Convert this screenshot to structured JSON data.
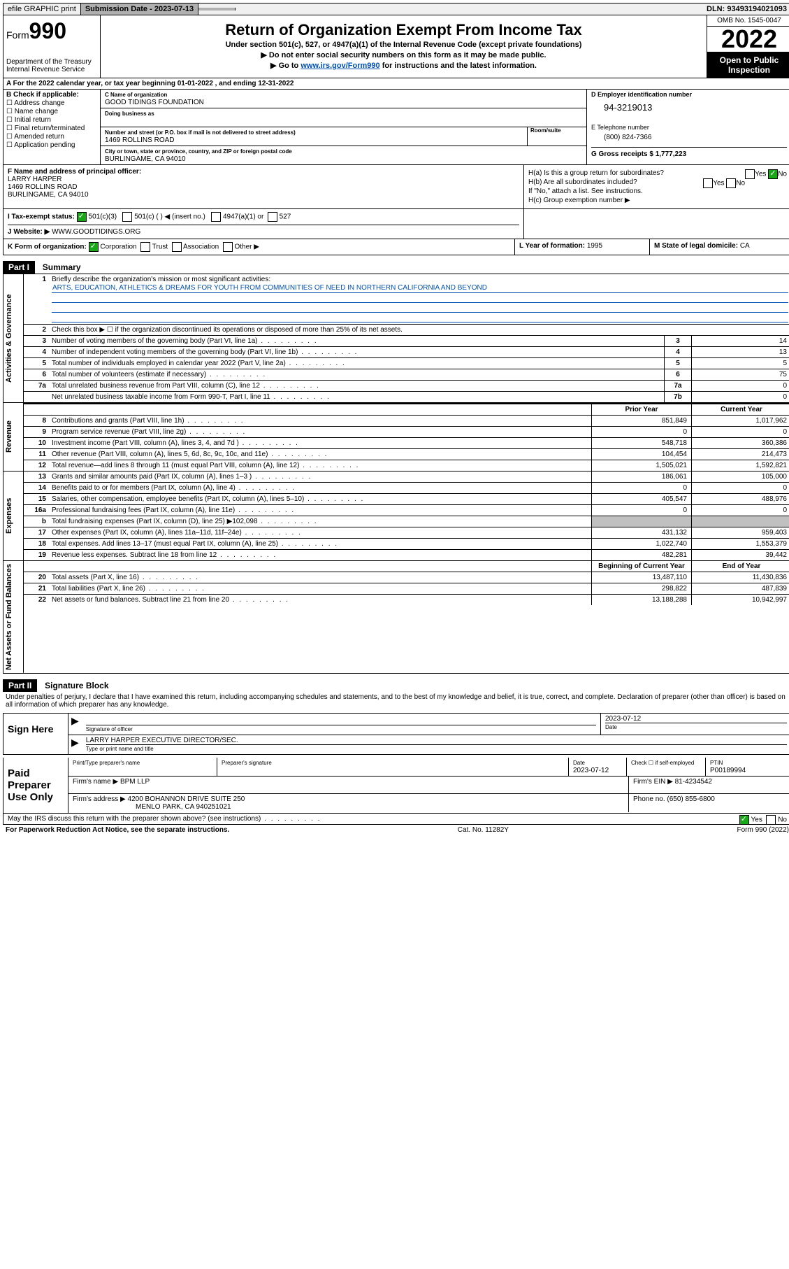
{
  "topbar": {
    "efile": "efile GRAPHIC print",
    "subdate_label": "Submission Date - 2023-07-13",
    "dln": "DLN: 93493194021093"
  },
  "header": {
    "form_prefix": "Form",
    "form_number": "990",
    "title": "Return of Organization Exempt From Income Tax",
    "subtitle1": "Under section 501(c), 527, or 4947(a)(1) of the Internal Revenue Code (except private foundations)",
    "subtitle2": "▶ Do not enter social security numbers on this form as it may be made public.",
    "subtitle3_pre": "▶ Go to ",
    "subtitle3_link": "www.irs.gov/Form990",
    "subtitle3_post": " for instructions and the latest information.",
    "dept": "Department of the Treasury\nInternal Revenue Service",
    "omb": "OMB No. 1545-0047",
    "year": "2022",
    "inspect": "Open to Public Inspection"
  },
  "row_a": "A For the 2022 calendar year, or tax year beginning 01-01-2022   , and ending 12-31-2022",
  "col_b": {
    "title": "B Check if applicable:",
    "opts": [
      "Address change",
      "Name change",
      "Initial return",
      "Final return/terminated",
      "Amended return",
      "Application pending"
    ]
  },
  "col_c": {
    "name_lbl": "C Name of organization",
    "name": "GOOD TIDINGS FOUNDATION",
    "dba_lbl": "Doing business as",
    "addr_lbl": "Number and street (or P.O. box if mail is not delivered to street address)",
    "room_lbl": "Room/suite",
    "addr": "1469 ROLLINS ROAD",
    "city_lbl": "City or town, state or province, country, and ZIP or foreign postal code",
    "city": "BURLINGAME, CA  94010"
  },
  "col_d": {
    "ein_lbl": "D Employer identification number",
    "ein": "94-3219013",
    "tel_lbl": "E Telephone number",
    "tel": "(800) 824-7366",
    "gross_lbl": "G Gross receipts $ ",
    "gross": "1,777,223"
  },
  "sec_f": {
    "lbl": "F Name and address of principal officer:",
    "name": "LARRY HARPER",
    "addr1": "1469 ROLLINS ROAD",
    "addr2": "BURLINGAME, CA  94010"
  },
  "sec_h": {
    "ha": "H(a)  Is this a group return for subordinates?",
    "hb": "H(b)  Are all subordinates included?",
    "hnote": "If \"No,\" attach a list. See instructions.",
    "hc": "H(c)  Group exemption number ▶",
    "yes": "Yes",
    "no": "No"
  },
  "row_i": {
    "lbl": "I   Tax-exempt status:",
    "o1": "501(c)(3)",
    "o2": "501(c) (  ) ◀ (insert no.)",
    "o3": "4947(a)(1) or",
    "o4": "527"
  },
  "row_j": {
    "lbl": "J  Website: ▶ ",
    "val": "WWW.GOODTIDINGS.ORG"
  },
  "row_k": {
    "lbl": "K Form of organization:",
    "o1": "Corporation",
    "o2": "Trust",
    "o3": "Association",
    "o4": "Other ▶",
    "l_lbl": "L Year of formation: ",
    "l_val": "1995",
    "m_lbl": "M State of legal domicile: ",
    "m_val": "CA"
  },
  "part1": {
    "hdr": "Part I",
    "title": "Summary",
    "q1": "Briefly describe the organization's mission or most significant activities:",
    "mission": "ARTS, EDUCATION, ATHLETICS & DREAMS FOR YOUTH FROM COMMUNITIES OF NEED IN NORTHERN CALIFORNIA AND BEYOND",
    "q2": "Check this box ▶ ☐  if the organization discontinued its operations or disposed of more than 25% of its net assets.",
    "lines_gov": [
      {
        "n": "3",
        "d": "Number of voting members of the governing body (Part VI, line 1a)",
        "c": "3",
        "v": "14"
      },
      {
        "n": "4",
        "d": "Number of independent voting members of the governing body (Part VI, line 1b)",
        "c": "4",
        "v": "13"
      },
      {
        "n": "5",
        "d": "Total number of individuals employed in calendar year 2022 (Part V, line 2a)",
        "c": "5",
        "v": "5"
      },
      {
        "n": "6",
        "d": "Total number of volunteers (estimate if necessary)",
        "c": "6",
        "v": "75"
      },
      {
        "n": "7a",
        "d": "Total unrelated business revenue from Part VIII, column (C), line 12",
        "c": "7a",
        "v": "0"
      },
      {
        "n": "",
        "d": "Net unrelated business taxable income from Form 990-T, Part I, line 11",
        "c": "7b",
        "v": "0"
      }
    ],
    "col_prior": "Prior Year",
    "col_current": "Current Year",
    "lines_rev": [
      {
        "n": "8",
        "d": "Contributions and grants (Part VIII, line 1h)",
        "p": "851,849",
        "c": "1,017,962"
      },
      {
        "n": "9",
        "d": "Program service revenue (Part VIII, line 2g)",
        "p": "0",
        "c": "0"
      },
      {
        "n": "10",
        "d": "Investment income (Part VIII, column (A), lines 3, 4, and 7d )",
        "p": "548,718",
        "c": "360,386"
      },
      {
        "n": "11",
        "d": "Other revenue (Part VIII, column (A), lines 5, 6d, 8c, 9c, 10c, and 11e)",
        "p": "104,454",
        "c": "214,473"
      },
      {
        "n": "12",
        "d": "Total revenue—add lines 8 through 11 (must equal Part VIII, column (A), line 12)",
        "p": "1,505,021",
        "c": "1,592,821"
      }
    ],
    "lines_exp": [
      {
        "n": "13",
        "d": "Grants and similar amounts paid (Part IX, column (A), lines 1–3 )",
        "p": "186,061",
        "c": "105,000"
      },
      {
        "n": "14",
        "d": "Benefits paid to or for members (Part IX, column (A), line 4)",
        "p": "0",
        "c": "0"
      },
      {
        "n": "15",
        "d": "Salaries, other compensation, employee benefits (Part IX, column (A), lines 5–10)",
        "p": "405,547",
        "c": "488,976"
      },
      {
        "n": "16a",
        "d": "Professional fundraising fees (Part IX, column (A), line 11e)",
        "p": "0",
        "c": "0"
      },
      {
        "n": "b",
        "d": "Total fundraising expenses (Part IX, column (D), line 25) ▶102,098",
        "p": "",
        "c": "",
        "gray": true
      },
      {
        "n": "17",
        "d": "Other expenses (Part IX, column (A), lines 11a–11d, 11f–24e)",
        "p": "431,132",
        "c": "959,403"
      },
      {
        "n": "18",
        "d": "Total expenses. Add lines 13–17 (must equal Part IX, column (A), line 25)",
        "p": "1,022,740",
        "c": "1,553,379"
      },
      {
        "n": "19",
        "d": "Revenue less expenses. Subtract line 18 from line 12",
        "p": "482,281",
        "c": "39,442"
      }
    ],
    "col_begin": "Beginning of Current Year",
    "col_end": "End of Year",
    "lines_net": [
      {
        "n": "20",
        "d": "Total assets (Part X, line 16)",
        "p": "13,487,110",
        "c": "11,430,836"
      },
      {
        "n": "21",
        "d": "Total liabilities (Part X, line 26)",
        "p": "298,822",
        "c": "487,839"
      },
      {
        "n": "22",
        "d": "Net assets or fund balances. Subtract line 21 from line 20",
        "p": "13,188,288",
        "c": "10,942,997"
      }
    ],
    "side_gov": "Activities & Governance",
    "side_rev": "Revenue",
    "side_exp": "Expenses",
    "side_net": "Net Assets or Fund Balances"
  },
  "part2": {
    "hdr": "Part II",
    "title": "Signature Block",
    "decl": "Under penalties of perjury, I declare that I have examined this return, including accompanying schedules and statements, and to the best of my knowledge and belief, it is true, correct, and complete. Declaration of preparer (other than officer) is based on all information of which preparer has any knowledge."
  },
  "sign": {
    "here": "Sign Here",
    "sig_lbl": "Signature of officer",
    "date_lbl": "Date",
    "date": "2023-07-12",
    "officer": "LARRY HARPER  EXECUTIVE DIRECTOR/SEC.",
    "type_lbl": "Type or print name and title"
  },
  "paid": {
    "here": "Paid Preparer Use Only",
    "col1": "Print/Type preparer's name",
    "col2": "Preparer's signature",
    "col3": "Date",
    "date": "2023-07-12",
    "col4": "Check ☐ if self-employed",
    "col5_lbl": "PTIN",
    "ptin": "P00189994",
    "firm_name_lbl": "Firm's name    ▶ ",
    "firm_name": "BPM LLP",
    "firm_ein_lbl": "Firm's EIN ▶ ",
    "firm_ein": "81-4234542",
    "firm_addr_lbl": "Firm's address ▶ ",
    "firm_addr1": "4200 BOHANNON DRIVE SUITE 250",
    "firm_addr2": "MENLO PARK, CA  940251021",
    "phone_lbl": "Phone no. ",
    "phone": "(650) 855-6800"
  },
  "discuss": {
    "q": "May the IRS discuss this return with the preparer shown above? (see instructions)",
    "yes": "Yes",
    "no": "No"
  },
  "footer": {
    "left": "For Paperwork Reduction Act Notice, see the separate instructions.",
    "mid": "Cat. No. 11282Y",
    "right": "Form 990 (2022)"
  }
}
